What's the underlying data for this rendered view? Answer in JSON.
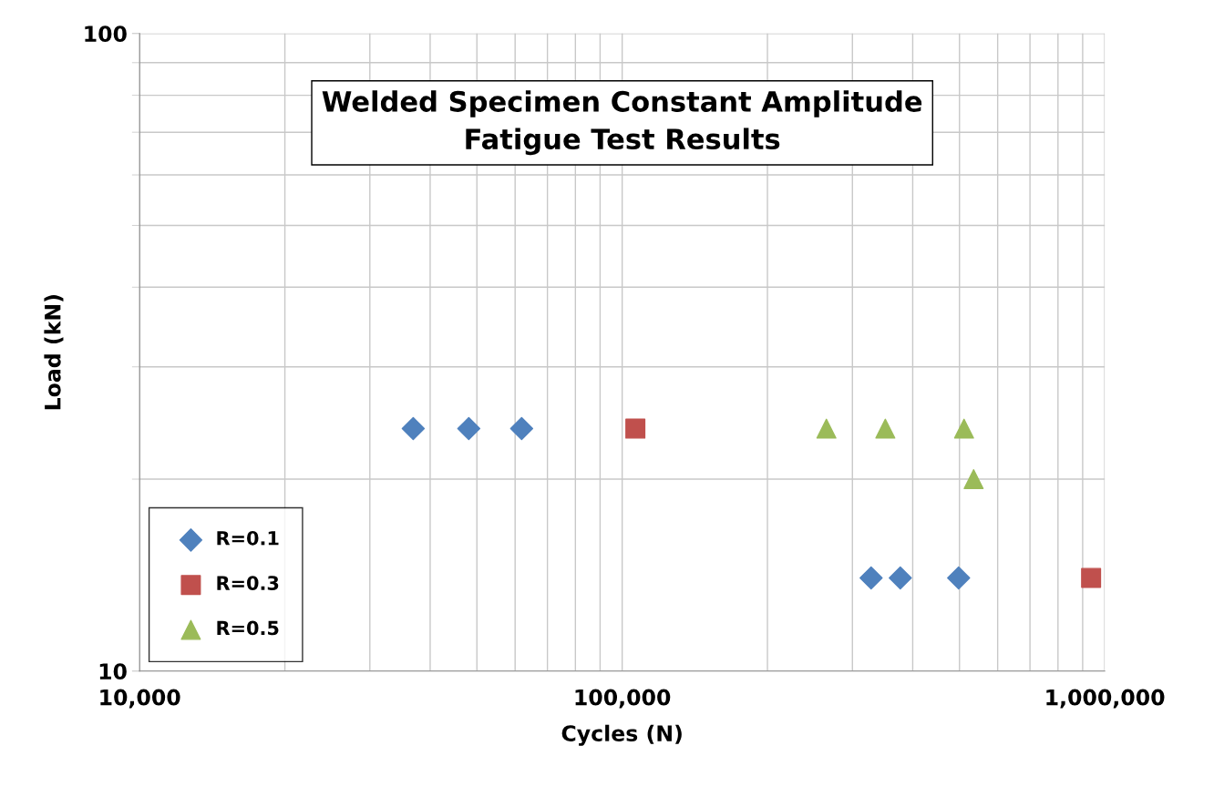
{
  "chart_data": {
    "type": "scatter",
    "title": "Welded Specimen Constant Amplitude\nFatigue Test Results",
    "xlabel": "Cycles (N)",
    "ylabel": "Load (kN)",
    "log": "xy",
    "xlim": [
      10000,
      1000000
    ],
    "ylim": [
      10,
      100
    ],
    "xticks": [
      {
        "value": 10000,
        "label": "10,000"
      },
      {
        "value": 100000,
        "label": "100,000"
      },
      {
        "value": 1000000,
        "label": "1,000,000"
      }
    ],
    "yticks": [
      10,
      100
    ],
    "grid": true,
    "legend": "bottom left",
    "series": [
      {
        "name": "R=0.1",
        "color": "#4f81bd",
        "marker": "diamond",
        "x": [
          36900,
          48100,
          61900,
          328000,
          377000,
          498000
        ],
        "values": [
          24,
          24,
          24,
          14,
          14,
          14
        ]
      },
      {
        "name": "R=0.3",
        "color": "#c0504d",
        "marker": "square",
        "x": [
          106500,
          937000
        ],
        "values": [
          24,
          14
        ]
      },
      {
        "name": "R=0.5",
        "color": "#9bbb59",
        "marker": "triangle",
        "x": [
          265000,
          351000,
          511000,
          535000
        ],
        "values": [
          24,
          24,
          24,
          20
        ]
      }
    ]
  }
}
